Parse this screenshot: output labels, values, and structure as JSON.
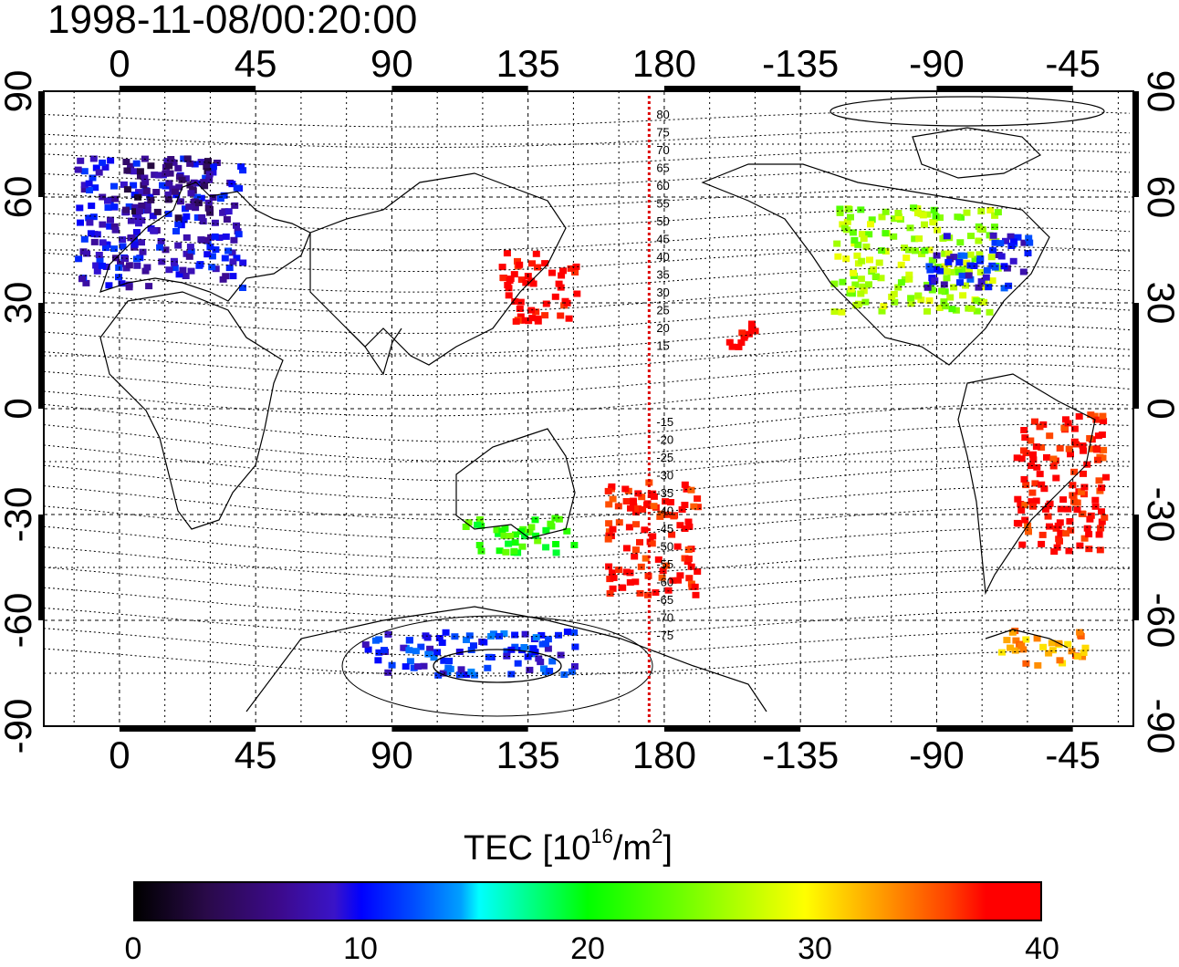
{
  "title": "1998-11-08/00:20:00",
  "map": {
    "lon_labels": [
      "0",
      "45",
      "90",
      "135",
      "180",
      "-135",
      "-90",
      "-45"
    ],
    "lon_values": [
      0,
      45,
      90,
      135,
      180,
      225,
      270,
      315
    ],
    "lat_labels": [
      "90",
      "60",
      "30",
      "0",
      "-30",
      "-60",
      "-90"
    ],
    "lat_values": [
      90,
      60,
      30,
      0,
      -30,
      -60,
      -90
    ],
    "lon_range": [
      -25,
      335
    ],
    "lat_range": [
      -90,
      90
    ],
    "grid": "dotted",
    "meridian_marker": {
      "lon": 175,
      "color": "#dd0000"
    },
    "contour_labels_north": [
      "80",
      "75",
      "70",
      "65",
      "60",
      "55",
      "50",
      "45",
      "40",
      "35",
      "30",
      "25",
      "20",
      "15"
    ],
    "contour_labels_south": [
      "-15",
      "-20",
      "-25",
      "-30",
      "-35",
      "-40",
      "-45",
      "-50",
      "-55",
      "-60",
      "-65",
      "-70",
      "-75"
    ]
  },
  "tec_regions": [
    {
      "name": "europe",
      "lon": [
        -15,
        40
      ],
      "lat": [
        35,
        72
      ],
      "tec": 9
    },
    {
      "name": "scandinavia",
      "lon": [
        0,
        30
      ],
      "lat": [
        55,
        72
      ],
      "tec": 5
    },
    {
      "name": "japan",
      "lon": [
        125,
        150
      ],
      "lat": [
        25,
        45
      ],
      "tec": 39
    },
    {
      "name": "north-america",
      "lon": [
        235,
        290
      ],
      "lat": [
        28,
        58
      ],
      "tec": 26
    },
    {
      "name": "east-us",
      "lon": [
        265,
        300
      ],
      "lat": [
        35,
        50
      ],
      "tec": 10
    },
    {
      "name": "new-zealand",
      "lon": [
        160,
        190
      ],
      "lat": [
        -52,
        -20
      ],
      "tec": 38
    },
    {
      "name": "south-america",
      "lon": [
        295,
        325
      ],
      "lat": [
        -40,
        0
      ],
      "tec": 38
    },
    {
      "name": "antarctic-peninsula",
      "lon": [
        290,
        320
      ],
      "lat": [
        -72,
        -62
      ],
      "tec": 33
    },
    {
      "name": "antarctica-east",
      "lon": [
        80,
        150
      ],
      "lat": [
        -75,
        -62
      ],
      "tec": 11
    },
    {
      "name": "australia",
      "lon": [
        112,
        150
      ],
      "lat": [
        -40,
        -30
      ],
      "tec": 22
    },
    {
      "name": "hawaii",
      "lon": [
        200,
        210
      ],
      "lat": [
        18,
        25
      ],
      "tec": 40
    }
  ],
  "colorbar": {
    "title_prefix": "TEC [10",
    "title_exp1": "16",
    "title_mid": "/m",
    "title_exp2": "2",
    "title_suffix": "]",
    "ticks": [
      "0",
      "10",
      "20",
      "30",
      "40"
    ],
    "tick_values": [
      0,
      10,
      20,
      30,
      40
    ],
    "range": [
      0,
      40
    ]
  }
}
